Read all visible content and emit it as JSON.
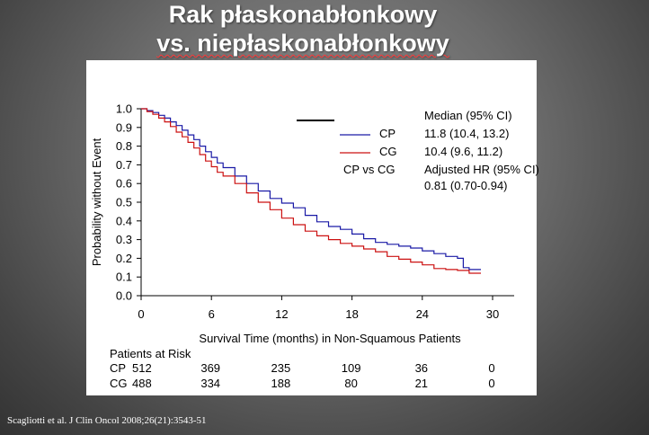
{
  "slide": {
    "title_line1": "Rak płaskonabłonkowy",
    "title_line2": "vs. niepłaskonabłonkowy",
    "citation": "Scagliotti et al. J Clin Oncol 2008;26(21):3543-51"
  },
  "chart_data": {
    "type": "line",
    "xlabel": "Survival Time (months) in Non-Squamous Patients",
    "ylabel": "Probability without Event",
    "xlim": [
      0,
      30
    ],
    "ylim": [
      0,
      1.0
    ],
    "x_ticks": [
      0,
      6,
      12,
      18,
      24,
      30
    ],
    "y_ticks": [
      0.0,
      0.1,
      0.2,
      0.3,
      0.4,
      0.5,
      0.6,
      0.7,
      0.8,
      0.9,
      1.0
    ],
    "y_tick_labels": [
      "0.0",
      "0.1",
      "0.2",
      "0.3",
      "0.4",
      "0.5",
      "0.6",
      "0.7",
      "0.8",
      "0.9",
      "1.0"
    ],
    "grid": false,
    "legend": {
      "header": "Median (95% CI)",
      "comparison_label": "CP vs CG",
      "hr_header": "Adjusted HR (95% CI)",
      "hr_value": "0.81 (0.70-0.94)"
    },
    "series": [
      {
        "name": "CP",
        "median_ci": "11.8 (10.4, 13.2)",
        "color": "#1a1aa6",
        "x": [
          0,
          0.5,
          1,
          1.5,
          2,
          2.5,
          3,
          3.5,
          4,
          4.5,
          5,
          5.5,
          6,
          6.5,
          7,
          8,
          9,
          10,
          11,
          12,
          13,
          14,
          15,
          16,
          17,
          18,
          19,
          20,
          21,
          22,
          23,
          24,
          25,
          26,
          27,
          27.5,
          28,
          29
        ],
        "y": [
          1.0,
          0.99,
          0.98,
          0.965,
          0.95,
          0.93,
          0.91,
          0.885,
          0.86,
          0.835,
          0.8,
          0.77,
          0.74,
          0.71,
          0.685,
          0.64,
          0.6,
          0.56,
          0.52,
          0.495,
          0.47,
          0.43,
          0.395,
          0.37,
          0.355,
          0.33,
          0.305,
          0.285,
          0.275,
          0.265,
          0.255,
          0.24,
          0.225,
          0.21,
          0.2,
          0.15,
          0.14,
          0.14
        ]
      },
      {
        "name": "CG",
        "median_ci": "10.4 (9.6, 11.2)",
        "color": "#cc1111",
        "x": [
          0,
          0.5,
          1,
          1.5,
          2,
          2.5,
          3,
          3.5,
          4,
          4.5,
          5,
          5.5,
          6,
          6.5,
          7,
          8,
          9,
          10,
          11,
          12,
          13,
          14,
          15,
          16,
          17,
          18,
          19,
          20,
          21,
          22,
          23,
          24,
          25,
          26,
          27,
          28,
          29
        ],
        "y": [
          1.0,
          0.985,
          0.97,
          0.95,
          0.93,
          0.905,
          0.875,
          0.85,
          0.82,
          0.79,
          0.755,
          0.72,
          0.69,
          0.66,
          0.64,
          0.6,
          0.55,
          0.5,
          0.46,
          0.415,
          0.38,
          0.345,
          0.32,
          0.3,
          0.28,
          0.265,
          0.25,
          0.235,
          0.21,
          0.195,
          0.18,
          0.165,
          0.145,
          0.14,
          0.135,
          0.12,
          0.12
        ]
      }
    ],
    "patients_at_risk": {
      "header": "Patients at Risk",
      "rows": [
        {
          "label": "CP",
          "values": [
            "512",
            "369",
            "235",
            "109",
            "36",
            "0"
          ]
        },
        {
          "label": "CG",
          "values": [
            "488",
            "334",
            "188",
            "80",
            "21",
            "0"
          ]
        }
      ]
    }
  }
}
